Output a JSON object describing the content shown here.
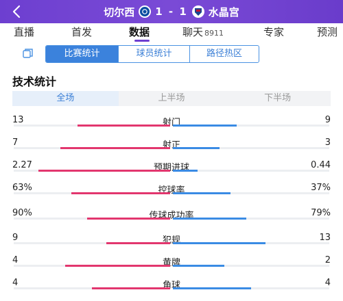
{
  "header": {
    "home_team": "切尔西",
    "away_team": "水晶宫",
    "home_score": "1",
    "separator": "-",
    "away_score": "1",
    "back_icon": "chevron-left-icon",
    "home_crest": "chelsea-crest-icon",
    "away_crest": "crystal-palace-crest-icon",
    "bg_color": "#6d3fd0"
  },
  "tabs": [
    {
      "label": "直播"
    },
    {
      "label": "首发"
    },
    {
      "label": "数据",
      "active": true
    },
    {
      "label": "聊天",
      "count": "8911"
    },
    {
      "label": "专家"
    },
    {
      "label": "预测"
    }
  ],
  "subtabs": {
    "icon": "pitch-toggle-icon",
    "items": [
      {
        "label": "比赛统计",
        "active": true
      },
      {
        "label": "球员统计"
      },
      {
        "label": "路径热区"
      }
    ]
  },
  "section_title": "技术统计",
  "periods": [
    {
      "label": "全场",
      "active": true
    },
    {
      "label": "上半场"
    },
    {
      "label": "下半场"
    }
  ],
  "colors": {
    "home_bar": "#e2366e",
    "away_bar": "#3a8be4",
    "accent": "#3b82dc"
  },
  "stats": [
    {
      "label": "射门",
      "home": "13",
      "away": "9",
      "home_ratio": 0.59,
      "away_ratio": 0.41
    },
    {
      "label": "射正",
      "home": "7",
      "away": "3",
      "home_ratio": 0.7,
      "away_ratio": 0.3
    },
    {
      "label": "预期进球",
      "home": "2.27",
      "away": "0.44",
      "home_ratio": 0.84,
      "away_ratio": 0.16
    },
    {
      "label": "控球率",
      "home": "63%",
      "away": "37%",
      "home_ratio": 0.63,
      "away_ratio": 0.37
    },
    {
      "label": "传球成功率",
      "home": "90%",
      "away": "79%",
      "home_ratio": 0.53,
      "away_ratio": 0.47
    },
    {
      "label": "犯规",
      "home": "9",
      "away": "13",
      "home_ratio": 0.41,
      "away_ratio": 0.59
    },
    {
      "label": "黄牌",
      "home": "4",
      "away": "2",
      "home_ratio": 0.67,
      "away_ratio": 0.33
    },
    {
      "label": "角球",
      "home": "4",
      "away": "4",
      "home_ratio": 0.5,
      "away_ratio": 0.5
    }
  ]
}
